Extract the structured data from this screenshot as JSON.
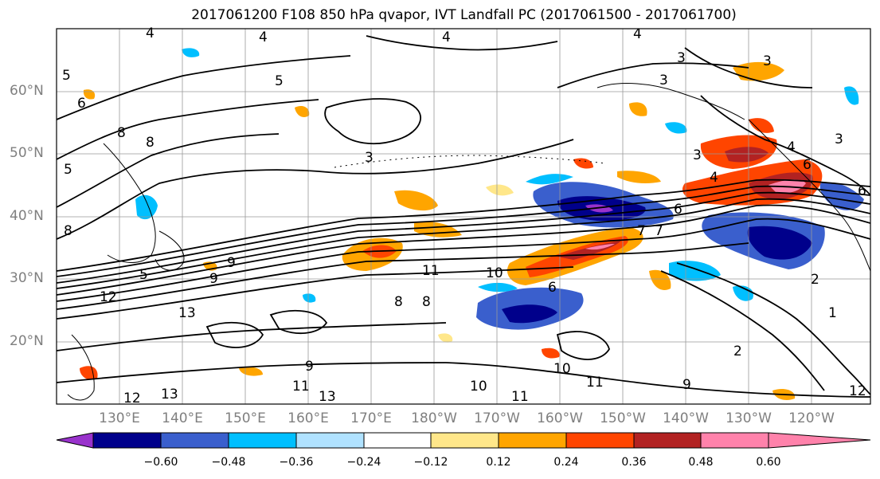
{
  "title": "2017061200 F108 850 hPa qvapor, IVT Landfall PC (2017061500 - 2017061700)",
  "lat_labels": [
    "60°N",
    "50°N",
    "40°N",
    "30°N",
    "20°N"
  ],
  "lon_labels": [
    "130°E",
    "140°E",
    "150°E",
    "160°E",
    "170°E",
    "180°W",
    "170°W",
    "160°W",
    "150°W",
    "140°W",
    "130°W",
    "120°W"
  ],
  "colorbar": {
    "ticks": [
      "−0.60",
      "−0.48",
      "−0.36",
      "−0.24",
      "−0.12",
      "0.12",
      "0.24",
      "0.36",
      "0.48",
      "0.60"
    ],
    "colors": [
      "#9932cc",
      "#00008b",
      "#3a5fcd",
      "#00bfff",
      "#b0e2ff",
      "#ffffff",
      "#ffe78a",
      "#ffa500",
      "#ff4500",
      "#b22222",
      "#ff82ab"
    ]
  },
  "contour_labels": [
    "4",
    "4",
    "5",
    "6",
    "8",
    "8",
    "4",
    "4",
    "3",
    "3",
    "3",
    "3",
    "4",
    "3",
    "6",
    "5",
    "9",
    "9",
    "11",
    "10",
    "6",
    "7",
    "13",
    "12",
    "11",
    "10",
    "8",
    "8",
    "9",
    "12",
    "13",
    "11",
    "13",
    "10",
    "11",
    "9",
    "4",
    "3",
    "2",
    "1",
    "2",
    "5",
    "12",
    "6",
    "7",
    "6",
    "8",
    "5"
  ],
  "icons": [
    "map-frame",
    "colorbar-extend-left-arrow",
    "colorbar-extend-right-arrow"
  ]
}
